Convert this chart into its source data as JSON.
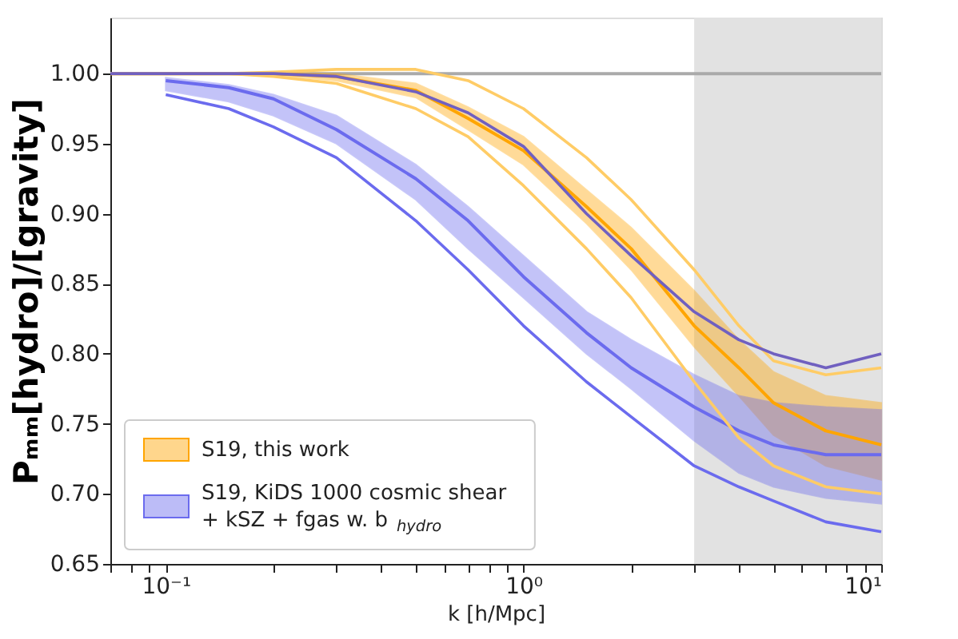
{
  "chart_data": {
    "type": "line",
    "xlabel": "k [h/Mpc]",
    "ylabel": "Pₘₘ[hydro]/[gravity]",
    "x": [
      0.07,
      0.1,
      0.15,
      0.2,
      0.3,
      0.5,
      0.7,
      1,
      1.5,
      2,
      3,
      4,
      5,
      7,
      10
    ],
    "series": [
      {
        "name": "S19, this work",
        "color": "#ffa500",
        "values": [
          1.0,
          1.0,
          1.0,
          1.0,
          0.998,
          0.988,
          0.968,
          0.945,
          0.905,
          0.875,
          0.82,
          0.79,
          0.765,
          0.745,
          0.735
        ],
        "lower": [
          1.0,
          1.0,
          1.0,
          0.999,
          0.995,
          0.983,
          0.96,
          0.935,
          0.893,
          0.86,
          0.805,
          0.77,
          0.742,
          0.72,
          0.71
        ],
        "upper": [
          1.0,
          1.0,
          1.0,
          1.001,
          1.0,
          0.993,
          0.976,
          0.955,
          0.917,
          0.89,
          0.845,
          0.81,
          0.787,
          0.77,
          0.765
        ]
      },
      {
        "name": "S19, KiDS 1000 cosmic shear\n+ kSZ + fgas w. b$_{hydro}$",
        "color": "#6b6bee",
        "values": [
          null,
          0.995,
          0.99,
          0.982,
          0.96,
          0.925,
          0.895,
          0.855,
          0.815,
          0.79,
          0.762,
          0.745,
          0.735,
          0.728,
          0.728
        ],
        "lower": [
          null,
          0.988,
          0.98,
          0.97,
          0.95,
          0.91,
          0.875,
          0.84,
          0.8,
          0.775,
          0.738,
          0.715,
          0.705,
          0.697,
          0.693
        ],
        "upper": [
          null,
          0.997,
          0.992,
          0.985,
          0.97,
          0.935,
          0.905,
          0.87,
          0.83,
          0.81,
          0.785,
          0.77,
          0.765,
          0.762,
          0.76
        ]
      },
      {
        "color": "#ffcc66",
        "values": [
          1.0,
          1.0,
          1.0,
          1.001,
          1.003,
          1.003,
          0.995,
          0.975,
          0.94,
          0.91,
          0.86,
          0.82,
          0.795,
          0.785,
          0.79
        ]
      },
      {
        "color": "#ffcc66",
        "values": [
          1.0,
          1.0,
          1.0,
          0.998,
          0.993,
          0.975,
          0.955,
          0.92,
          0.875,
          0.84,
          0.78,
          0.74,
          0.72,
          0.705,
          0.7
        ]
      },
      {
        "color": "#7060c0",
        "values": [
          1.0,
          1.0,
          1.0,
          1.0,
          0.998,
          0.987,
          0.972,
          0.948,
          0.9,
          0.87,
          0.83,
          0.81,
          0.8,
          0.79,
          0.8
        ]
      },
      {
        "color": "#6b6bee",
        "values": [
          null,
          0.985,
          0.975,
          0.962,
          0.94,
          0.895,
          0.86,
          0.82,
          0.78,
          0.755,
          0.72,
          0.705,
          0.695,
          0.68,
          0.673
        ]
      }
    ],
    "log": "x",
    "xlim": [
      0.07,
      10
    ],
    "xticks": [
      {
        "value": 0.07,
        "label": null
      },
      {
        "value": 0.08,
        "label": null
      },
      {
        "value": 0.09,
        "label": null
      },
      {
        "value": 0.1,
        "label": "10⁻¹"
      },
      {
        "value": 0.2,
        "label": null
      },
      {
        "value": 0.3,
        "label": null
      },
      {
        "value": 0.4,
        "label": null
      },
      {
        "value": 0.5,
        "label": null
      },
      {
        "value": 0.6,
        "label": null
      },
      {
        "value": 0.7,
        "label": null
      },
      {
        "value": 0.8,
        "label": null
      },
      {
        "value": 0.9,
        "label": null
      },
      {
        "value": 1,
        "label": "10⁰"
      },
      {
        "value": 2,
        "label": null
      },
      {
        "value": 3,
        "label": null
      },
      {
        "value": 4,
        "label": null
      },
      {
        "value": 5,
        "label": null
      },
      {
        "value": 6,
        "label": null
      },
      {
        "value": 7,
        "label": null
      },
      {
        "value": 8,
        "label": null
      },
      {
        "value": 9,
        "label": null
      },
      {
        "value": 10,
        "label": "10¹"
      }
    ],
    "ylim": [
      0.65,
      1.04
    ],
    "yticks": [
      {
        "value": 0.65,
        "label": "0.65"
      },
      {
        "value": 0.7,
        "label": "0.70"
      },
      {
        "value": 0.75,
        "label": "0.75"
      },
      {
        "value": 0.8,
        "label": "0.80"
      },
      {
        "value": 0.85,
        "label": "0.85"
      },
      {
        "value": 0.9,
        "label": "0.90"
      },
      {
        "value": 0.95,
        "label": "0.95"
      },
      {
        "value": 1,
        "label": "1.00"
      }
    ],
    "ref_lines": [
      {
        "axis": "y",
        "value": 1,
        "color": "#aaaaaa"
      }
    ],
    "bands": [
      {
        "axis": "x",
        "from": 3,
        "to": 10,
        "color": "#e2e2e2"
      }
    ],
    "grid": false,
    "legend": "bottom left"
  }
}
